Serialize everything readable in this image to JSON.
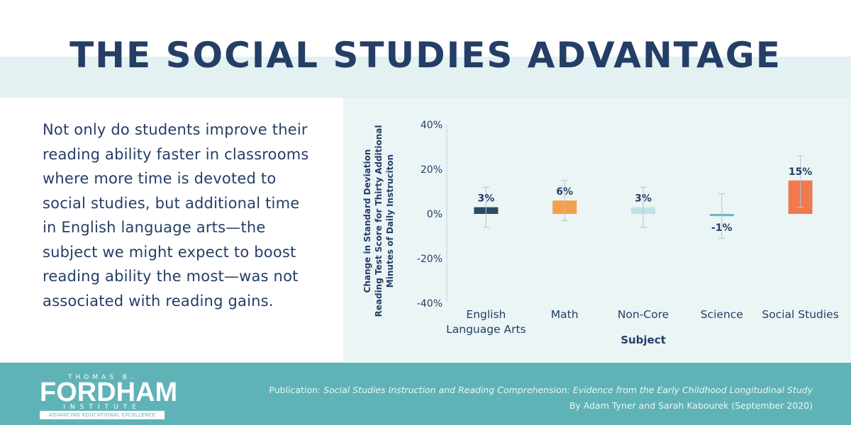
{
  "header": {
    "title": "THE SOCIAL STUDIES ADVANTAGE"
  },
  "intro": {
    "lines": [
      "Not only do students improve their",
      "reading ability faster in classrooms",
      "where more time is devoted to",
      "social studies, but additional time",
      "in English language arts—the",
      "subject we might expect to boost",
      "reading ability the most—was not",
      "associated with reading gains."
    ]
  },
  "chart_data": {
    "type": "bar",
    "categories": [
      [
        "English",
        "Language Arts"
      ],
      [
        "Math"
      ],
      [
        "Non-Core"
      ],
      [
        "Science"
      ],
      [
        "Social Studies"
      ]
    ],
    "values": [
      3,
      6,
      3,
      -1,
      15
    ],
    "value_labels": [
      "3%",
      "6%",
      "3%",
      "-1%",
      "15%"
    ],
    "error_bars": [
      [
        -6,
        12
      ],
      [
        -3,
        15
      ],
      [
        -6,
        12
      ],
      [
        -11,
        9
      ],
      [
        3,
        26
      ]
    ],
    "colors": [
      "#2c4a63",
      "#f4a04a",
      "#bfe3e6",
      "#6cb9bf",
      "#ef7a50"
    ],
    "ylim": [
      -40,
      40
    ],
    "yticks": [
      40,
      20,
      0,
      -20,
      -40
    ],
    "ytick_labels": [
      "40%",
      "20%",
      "0%",
      "-20%",
      "-40%"
    ],
    "xlabel": "Subject",
    "ylabel": [
      "Change in Standard Deviation",
      "Reading Test Score for Thirty Additional",
      "Minutes of Daily Instruciton"
    ],
    "grid": false
  },
  "footer": {
    "logo": {
      "top": "THOMAS B.",
      "main": "FORDHAM",
      "sub": "INSTITUTE",
      "tagline": "ADVANCING EDUCATIONAL EXCELLENCE"
    },
    "publication_prefix": "Publication: ",
    "publication_title": "Social Studies Instruction and Reading Comprehension: Evidence from the Early Childhood Longitudinal Study",
    "byline": "By Adam Tyner and Sarah Kabourek (September 2020)"
  },
  "colors": {
    "navy": "#243e66",
    "title_band": "#e3f1f2",
    "chart_bg": "#ebf5f6",
    "footer_bg": "#5fb3b6"
  }
}
